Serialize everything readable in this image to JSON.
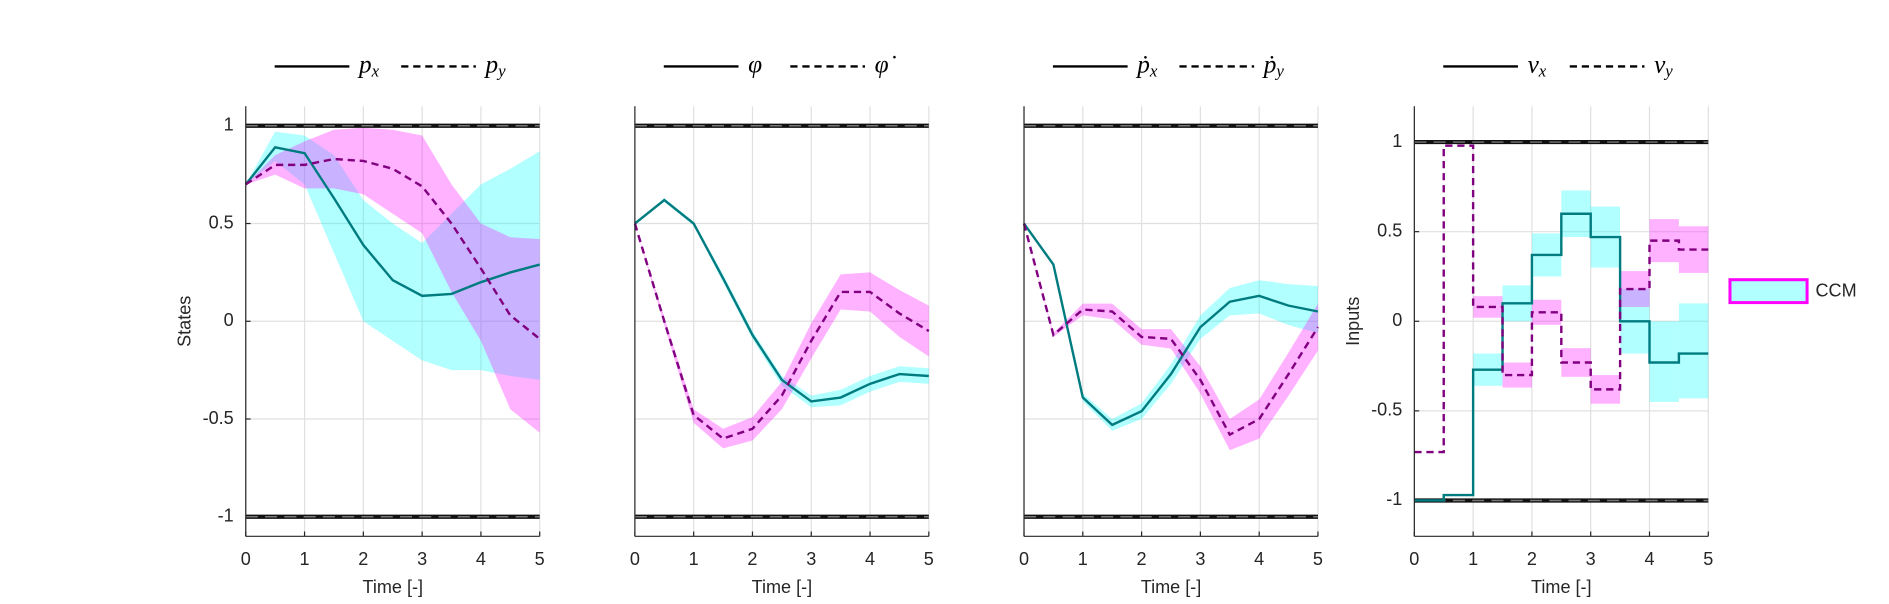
{
  "chart_data": [
    {
      "type": "line",
      "ylabel": "States",
      "xlabel": "Time [-]",
      "x": [
        0,
        0.5,
        1,
        1.5,
        2,
        2.5,
        3,
        3.5,
        4,
        4.5,
        5
      ],
      "xlim": [
        0,
        5
      ],
      "xticks": [
        0,
        1,
        2,
        3,
        4,
        5
      ],
      "ylim": [
        -1.1,
        1.1
      ],
      "yticks": [
        -1,
        -0.5,
        0,
        0.5,
        1
      ],
      "show_ytick_labels": true,
      "grid": true,
      "bounds": [
        -1,
        1
      ],
      "series": [
        {
          "name": "p",
          "subscript": "x",
          "color": "#007c80",
          "band_color": "#00ffff",
          "dashed": false,
          "values": [
            0.7,
            0.89,
            0.86,
            0.63,
            0.39,
            0.21,
            0.13,
            0.14,
            0.2,
            0.25,
            0.29
          ],
          "lower": [
            0.7,
            0.82,
            0.7,
            0.35,
            0.0,
            -0.1,
            -0.2,
            -0.25,
            -0.25,
            -0.28,
            -0.3
          ],
          "upper": [
            0.7,
            0.97,
            0.95,
            0.85,
            0.62,
            0.5,
            0.4,
            0.55,
            0.7,
            0.78,
            0.87
          ]
        },
        {
          "name": "p",
          "subscript": "y",
          "color": "#800080",
          "band_color": "#ff00ff",
          "dashed": true,
          "values": [
            0.7,
            0.8,
            0.8,
            0.83,
            0.82,
            0.78,
            0.69,
            0.5,
            0.27,
            0.03,
            -0.09
          ],
          "lower": [
            0.7,
            0.75,
            0.68,
            0.68,
            0.65,
            0.55,
            0.45,
            0.15,
            -0.1,
            -0.45,
            -0.57
          ],
          "upper": [
            0.7,
            0.85,
            0.92,
            0.98,
            0.99,
            0.98,
            0.95,
            0.7,
            0.5,
            0.43,
            0.42
          ]
        }
      ]
    },
    {
      "type": "line",
      "xlabel": "Time [-]",
      "x": [
        0,
        0.5,
        1,
        1.5,
        2,
        2.5,
        3,
        3.5,
        4,
        4.5,
        5
      ],
      "xlim": [
        0,
        5
      ],
      "xticks": [
        0,
        1,
        2,
        3,
        4,
        5
      ],
      "ylim": [
        -1.1,
        1.1
      ],
      "yticks": [
        -1,
        -0.5,
        0,
        0.5,
        1
      ],
      "show_ytick_labels": false,
      "grid": true,
      "bounds": [
        -1,
        1
      ],
      "series": [
        {
          "name": "φ",
          "color": "#007c80",
          "band_color": "#00ffff",
          "dashed": false,
          "values": [
            0.5,
            0.62,
            0.5,
            0.22,
            -0.07,
            -0.3,
            -0.41,
            -0.39,
            -0.32,
            -0.27,
            -0.28
          ],
          "lower": [
            0.5,
            0.61,
            0.49,
            0.2,
            -0.09,
            -0.33,
            -0.44,
            -0.43,
            -0.36,
            -0.31,
            -0.32
          ],
          "upper": [
            0.5,
            0.63,
            0.51,
            0.24,
            -0.05,
            -0.28,
            -0.38,
            -0.35,
            -0.28,
            -0.23,
            -0.24
          ]
        },
        {
          "name": "φ̇",
          "color": "#800080",
          "band_color": "#ff00ff",
          "dashed": true,
          "values": [
            0.5,
            0.0,
            -0.48,
            -0.6,
            -0.55,
            -0.38,
            -0.1,
            0.15,
            0.15,
            0.04,
            -0.05
          ],
          "lower": [
            0.5,
            -0.02,
            -0.52,
            -0.65,
            -0.61,
            -0.45,
            -0.19,
            0.06,
            0.05,
            -0.08,
            -0.18
          ],
          "upper": [
            0.5,
            0.02,
            -0.45,
            -0.55,
            -0.49,
            -0.31,
            -0.01,
            0.24,
            0.25,
            0.16,
            0.08
          ]
        }
      ]
    },
    {
      "type": "line",
      "xlabel": "Time [-]",
      "x": [
        0,
        0.5,
        1,
        1.5,
        2,
        2.5,
        3,
        3.5,
        4,
        4.5,
        5
      ],
      "xlim": [
        0,
        5
      ],
      "xticks": [
        0,
        1,
        2,
        3,
        4,
        5
      ],
      "ylim": [
        -1.1,
        1.1
      ],
      "yticks": [
        -1,
        -0.5,
        0,
        0.5,
        1
      ],
      "show_ytick_labels": false,
      "grid": true,
      "bounds": [
        -1,
        1
      ],
      "series": [
        {
          "name": "ṗ",
          "subscript": "x",
          "color": "#007c80",
          "band_color": "#00ffff",
          "dashed": false,
          "values": [
            0.5,
            0.29,
            -0.39,
            -0.53,
            -0.46,
            -0.27,
            -0.03,
            0.1,
            0.13,
            0.08,
            0.05
          ],
          "lower": [
            0.5,
            0.28,
            -0.41,
            -0.56,
            -0.5,
            -0.32,
            -0.09,
            0.03,
            0.04,
            -0.02,
            -0.06
          ],
          "upper": [
            0.5,
            0.3,
            -0.37,
            -0.5,
            -0.42,
            -0.22,
            0.03,
            0.17,
            0.21,
            0.19,
            0.18
          ]
        },
        {
          "name": "ṗ",
          "subscript": "y",
          "color": "#800080",
          "band_color": "#ff00ff",
          "dashed": true,
          "values": [
            0.5,
            -0.07,
            0.06,
            0.05,
            -0.08,
            -0.09,
            -0.3,
            -0.58,
            -0.5,
            -0.27,
            -0.03
          ],
          "lower": [
            0.5,
            -0.08,
            0.03,
            0.01,
            -0.12,
            -0.14,
            -0.37,
            -0.66,
            -0.6,
            -0.38,
            -0.15
          ],
          "upper": [
            0.5,
            -0.06,
            0.09,
            0.09,
            -0.04,
            -0.04,
            -0.23,
            -0.5,
            -0.4,
            -0.16,
            0.09
          ]
        }
      ]
    },
    {
      "type": "step",
      "ylabel": "Inputs",
      "xlabel": "Time [-]",
      "x": [
        0,
        0.5,
        1,
        1.5,
        2,
        2.5,
        3,
        3.5,
        4,
        4.5
      ],
      "xlim": [
        0,
        5
      ],
      "xticks": [
        0,
        1,
        2,
        3,
        4,
        5
      ],
      "ylim": [
        -1.2,
        1.2
      ],
      "yticks": [
        -1,
        -0.5,
        0,
        0.5,
        1
      ],
      "show_ytick_labels": true,
      "grid": true,
      "bounds": [
        -1,
        1
      ],
      "series": [
        {
          "name": "v",
          "subscript": "x",
          "color": "#007c80",
          "band_color": "#00ffff",
          "dashed": false,
          "values": [
            -1,
            -0.97,
            -0.27,
            0.1,
            0.37,
            0.6,
            0.47,
            0.0,
            -0.23,
            -0.18
          ],
          "lower": [
            -1,
            -0.97,
            -0.36,
            0.0,
            0.25,
            0.47,
            0.3,
            -0.18,
            -0.45,
            -0.43
          ],
          "upper": [
            -1,
            -0.97,
            -0.18,
            0.2,
            0.49,
            0.73,
            0.64,
            0.18,
            0.0,
            0.1
          ]
        },
        {
          "name": "v",
          "subscript": "y",
          "color": "#800080",
          "band_color": "#ff00ff",
          "dashed": true,
          "values": [
            -0.73,
            0.98,
            0.08,
            -0.3,
            0.05,
            -0.23,
            -0.38,
            0.18,
            0.45,
            0.4
          ],
          "lower": [
            -0.73,
            0.98,
            0.02,
            -0.37,
            -0.02,
            -0.31,
            -0.46,
            0.08,
            0.33,
            0.27
          ],
          "upper": [
            -0.73,
            0.98,
            0.14,
            -0.23,
            0.12,
            -0.15,
            -0.3,
            0.28,
            0.57,
            0.53
          ]
        }
      ]
    }
  ],
  "legend": {
    "label": "CCM",
    "fill": "#00ffff",
    "border": "#ff00ff"
  }
}
